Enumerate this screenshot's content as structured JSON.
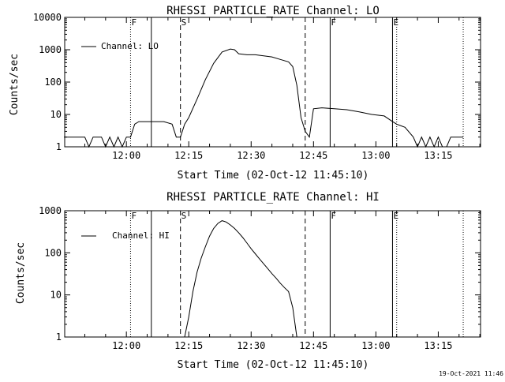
{
  "stamp": "19-Oct-2021 11:46",
  "chart_data": [
    {
      "type": "line",
      "title": "RHESSI PARTICLE_RATE Channel: LO",
      "xlabel": "Start Time (02-Oct-12 11:45:10)",
      "ylabel": "Counts/sec",
      "y_scale": "log",
      "ylim": [
        1,
        10000
      ],
      "xlim": [
        "11:45:10",
        "13:25:10"
      ],
      "x_ticks": [
        "12:00",
        "12:15",
        "12:30",
        "12:45",
        "13:00",
        "13:15"
      ],
      "y_ticks": [
        "1",
        "10",
        "100",
        "1000",
        "10000"
      ],
      "legend": "Channel: LO",
      "legend_position": "top-left",
      "markers": [
        {
          "label": "F",
          "time": "12:01",
          "style": "dotted"
        },
        {
          "label": "",
          "time": "12:06",
          "style": "solid"
        },
        {
          "label": "S",
          "time": "12:13",
          "style": "dashed"
        },
        {
          "label": "",
          "time": "12:43",
          "style": "dashed"
        },
        {
          "label": "F",
          "time": "12:49",
          "style": "solid"
        },
        {
          "label": "E",
          "time": "13:04",
          "style": "solid"
        },
        {
          "label": "",
          "time": "13:05",
          "style": "dotted"
        },
        {
          "label": "",
          "time": "13:21",
          "style": "dotted"
        }
      ],
      "series": [
        {
          "x": [
            "11:45",
            "11:50",
            "11:51",
            "11:52",
            "11:53",
            "11:54",
            "11:55",
            "11:56",
            "11:57",
            "11:58",
            "11:59",
            "12:00",
            "12:01",
            "12:02",
            "12:03",
            "12:05",
            "12:07",
            "12:09",
            "12:11",
            "12:12",
            "12:13",
            "12:14",
            "12:15",
            "12:17",
            "12:19",
            "12:21",
            "12:23",
            "12:25",
            "12:26",
            "12:27",
            "12:29",
            "12:31",
            "12:33",
            "12:35",
            "12:37",
            "12:39",
            "12:40",
            "12:41",
            "12:42",
            "12:43",
            "12:44",
            "12:45",
            "12:47",
            "12:50",
            "12:53",
            "12:56",
            "12:59",
            "13:02",
            "13:04",
            "13:05",
            "13:07",
            "13:09",
            "13:10",
            "13:11",
            "13:12",
            "13:13",
            "13:14",
            "13:15",
            "13:16",
            "13:17",
            "13:18",
            "13:20",
            "13:21"
          ],
          "y": [
            2,
            2,
            1,
            2,
            2,
            2,
            1,
            2,
            1,
            2,
            1,
            2,
            2,
            5,
            6,
            6,
            6,
            6,
            5,
            2,
            2,
            5,
            8,
            30,
            120,
            380,
            850,
            1050,
            1000,
            750,
            700,
            700,
            650,
            600,
            500,
            420,
            300,
            80,
            8,
            3,
            2,
            15,
            16,
            15,
            14,
            12,
            10,
            9,
            6,
            5,
            4,
            2,
            1,
            2,
            1,
            2,
            1,
            2,
            1,
            1,
            2,
            2,
            2
          ]
        }
      ]
    },
    {
      "type": "line",
      "title": "RHESSI PARTICLE_RATE Channel: HI",
      "xlabel": "Start Time (02-Oct-12 11:45:10)",
      "ylabel": "Counts/sec",
      "y_scale": "log",
      "ylim": [
        1,
        1000
      ],
      "xlim": [
        "11:45:10",
        "13:25:10"
      ],
      "x_ticks": [
        "12:00",
        "12:15",
        "12:30",
        "12:45",
        "13:00",
        "13:15"
      ],
      "y_ticks": [
        "1",
        "10",
        "100",
        "1000"
      ],
      "legend": "Channel: HI",
      "legend_position": "top-left",
      "markers": [
        {
          "label": "F",
          "time": "12:01",
          "style": "dotted"
        },
        {
          "label": "",
          "time": "12:06",
          "style": "solid"
        },
        {
          "label": "S",
          "time": "12:13",
          "style": "dashed"
        },
        {
          "label": "",
          "time": "12:43",
          "style": "dashed"
        },
        {
          "label": "F",
          "time": "12:49",
          "style": "solid"
        },
        {
          "label": "E",
          "time": "13:04",
          "style": "solid"
        },
        {
          "label": "",
          "time": "13:05",
          "style": "dotted"
        },
        {
          "label": "",
          "time": "13:21",
          "style": "dotted"
        }
      ],
      "series": [
        {
          "x": [
            "12:14",
            "12:15",
            "12:16",
            "12:17",
            "12:18",
            "12:19",
            "12:20",
            "12:21",
            "12:22",
            "12:23",
            "12:24",
            "12:25",
            "12:26",
            "12:27",
            "12:28",
            "12:29",
            "12:30",
            "12:31",
            "12:32",
            "12:33",
            "12:34",
            "12:35",
            "12:36",
            "12:37",
            "12:38",
            "12:39",
            "12:40",
            "12:41"
          ],
          "y": [
            1,
            3,
            12,
            35,
            75,
            140,
            250,
            380,
            500,
            580,
            540,
            460,
            380,
            300,
            230,
            170,
            125,
            95,
            72,
            55,
            42,
            32,
            25,
            19,
            15,
            12,
            5,
            1
          ]
        }
      ]
    }
  ]
}
